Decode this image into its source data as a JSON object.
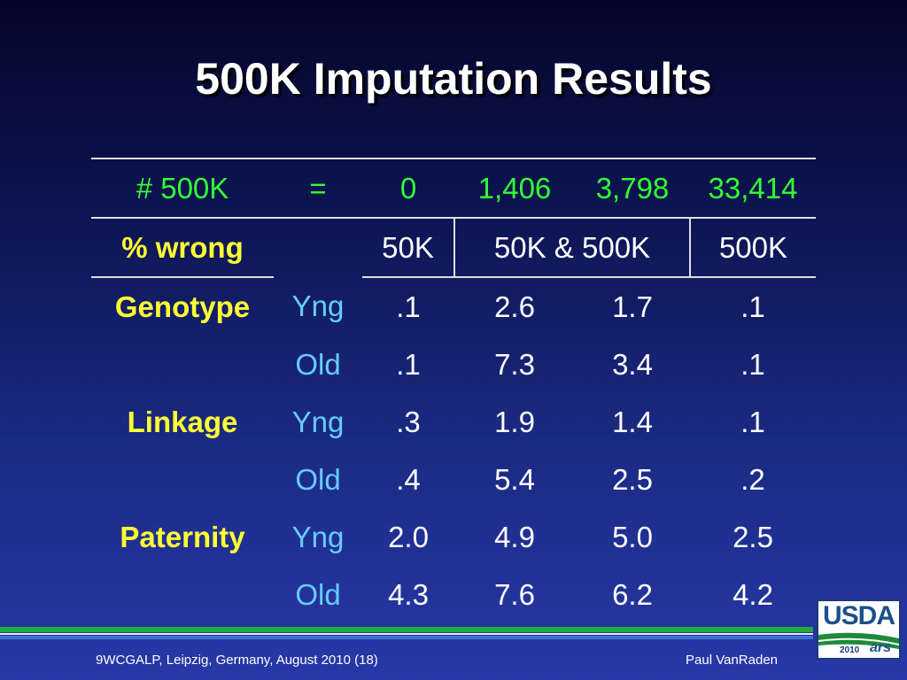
{
  "title": "500K Imputation Results",
  "table": {
    "header": {
      "label": "# 500K",
      "eq": "=",
      "counts": [
        "0",
        "1,406",
        "3,798",
        "33,414"
      ]
    },
    "subheader": {
      "label": "% wrong",
      "cols": [
        "50K",
        "50K & 500K",
        "500K"
      ]
    },
    "rows": [
      {
        "group": "Genotype",
        "age": "Yng",
        "values": [
          ".1",
          "2.6",
          "1.7",
          ".1"
        ]
      },
      {
        "group": "",
        "age": "Old",
        "values": [
          ".1",
          "7.3",
          "3.4",
          ".1"
        ]
      },
      {
        "group": "Linkage",
        "age": "Yng",
        "values": [
          ".3",
          "1.9",
          "1.4",
          ".1"
        ]
      },
      {
        "group": "",
        "age": "Old",
        "values": [
          ".4",
          "5.4",
          "2.5",
          ".2"
        ]
      },
      {
        "group": "Paternity",
        "age": "Yng",
        "values": [
          "2.0",
          "4.9",
          "5.0",
          "2.5"
        ]
      },
      {
        "group": "",
        "age": "Old",
        "values": [
          "4.3",
          "7.6",
          "6.2",
          "4.2"
        ]
      }
    ]
  },
  "footer": {
    "left": "9WCGALP, Leipzig, Germany, August 2010 (18)",
    "right": "Paul VanRaden"
  },
  "logo": {
    "text": "USDA",
    "year": "2010",
    "mark": "ars"
  },
  "colors": {
    "green": "#33ff33",
    "yellow": "#ffff33",
    "cyan": "#66ccff",
    "rule_green": "#1eaa3c",
    "rule_blue": "#3d6fd0"
  }
}
